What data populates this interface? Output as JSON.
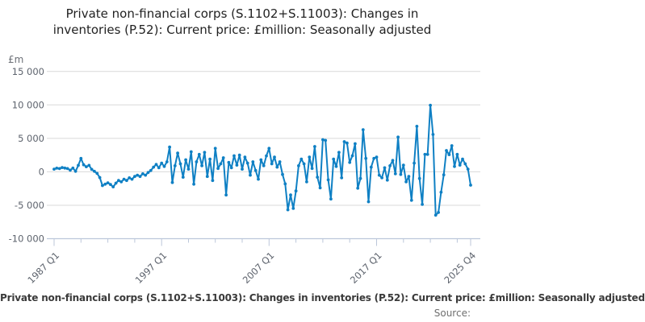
{
  "chart": {
    "title": "Private non-financial corps (S.1102+S.11003): Changes in inventories (P.52): Current price: £million: Seasonally adjusted",
    "y_unit": "£m",
    "caption": "Private non-financial corps (S.1102+S.11003): Changes in inventories (P.52): Current price: £million: Seasonally adjusted",
    "source_label": "Source:"
  },
  "chart_data": {
    "type": "line",
    "title": "Private non-financial corps (S.1102+S.11003): Changes in inventories (P.52): Current price: £million: Seasonally adjusted",
    "ylabel": "£m",
    "frequency": "quarterly",
    "x_start": "1987 Q1",
    "x_end": "2025 Q4",
    "ylim": [
      -10000,
      15000
    ],
    "grid": true,
    "line_color": "#0f80c4",
    "grid_color": "#d9d9d9",
    "axis_color": "#bcc7da",
    "tick_label_color": "#5d636d",
    "y_ticks": [
      {
        "value": 15000,
        "label": "15 000"
      },
      {
        "value": 10000,
        "label": "10 000"
      },
      {
        "value": 5000,
        "label": "5 000"
      },
      {
        "value": 0,
        "label": "0"
      },
      {
        "value": -5000,
        "label": "-5 000"
      },
      {
        "value": -10000,
        "label": "-10 000"
      }
    ],
    "x_tick_labels": [
      {
        "index": 0,
        "label": "1987 Q1"
      },
      {
        "index": 40,
        "label": "1997 Q1"
      },
      {
        "index": 80,
        "label": "2007 Q1"
      },
      {
        "index": 120,
        "label": "2017 Q1"
      },
      {
        "index": 155,
        "label": "2025 Q4"
      }
    ],
    "values": [
      400,
      550,
      480,
      640,
      560,
      480,
      240,
      560,
      80,
      970,
      2000,
      1050,
      760,
      970,
      360,
      80,
      -240,
      -850,
      -2050,
      -1850,
      -1650,
      -1900,
      -2250,
      -1700,
      -1300,
      -1500,
      -1100,
      -1300,
      -900,
      -1100,
      -700,
      -500,
      -700,
      -300,
      -500,
      -100,
      200,
      700,
      1100,
      600,
      1300,
      800,
      1500,
      3700,
      -1600,
      900,
      2800,
      1200,
      -800,
      1800,
      400,
      3000,
      -1850,
      1500,
      2600,
      900,
      2900,
      -700,
      1900,
      -1300,
      3500,
      500,
      1200,
      2100,
      -3470,
      1400,
      600,
      2400,
      1000,
      2500,
      400,
      2200,
      1300,
      -500,
      1500,
      200,
      -1100,
      1800,
      900,
      2380,
      3500,
      1200,
      2200,
      700,
      1500,
      -400,
      -1800,
      -5680,
      -3470,
      -5470,
      -2860,
      900,
      1900,
      1200,
      -1500,
      2200,
      500,
      3780,
      -800,
      -2400,
      4800,
      4700,
      -1200,
      -4070,
      1900,
      800,
      2900,
      -900,
      4500,
      4300,
      1400,
      2400,
      4200,
      -2450,
      -1000,
      6300,
      2000,
      -4470,
      700,
      2000,
      2200,
      -500,
      -900,
      600,
      -1240,
      900,
      1700,
      -300,
      5190,
      -400,
      1000,
      -1500,
      -700,
      -4260,
      1300,
      6800,
      -1000,
      -4870,
      2600,
      2600,
      9950,
      5590,
      -6480,
      -6080,
      -3060,
      -450,
      3180,
      2570,
      3900,
      800,
      2600,
      1000,
      1900,
      1200,
      400,
      -2000
    ]
  }
}
